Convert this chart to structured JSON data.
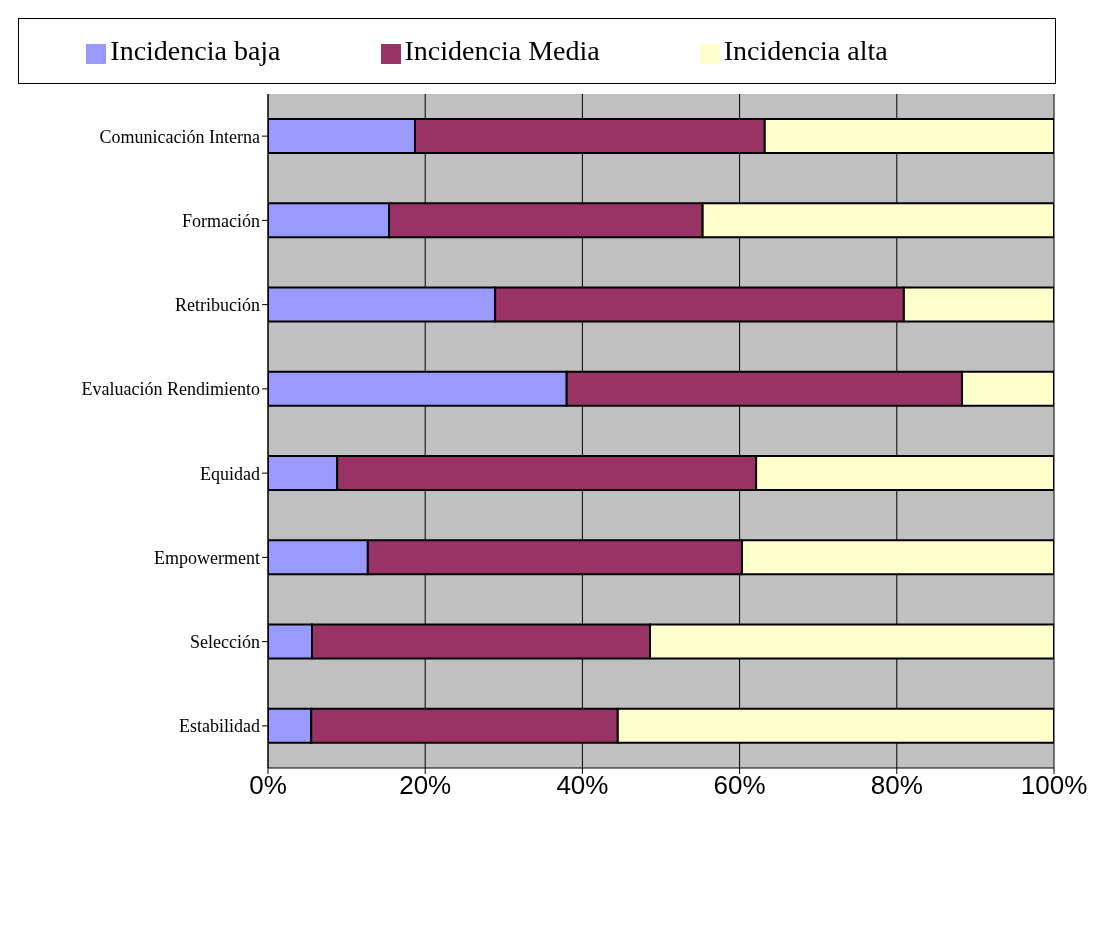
{
  "chart_data": {
    "type": "bar",
    "orientation": "horizontal",
    "stacked": true,
    "categories": [
      "Comunicación Interna",
      "Formación",
      "Retribución",
      "Evaluación Rendimiento",
      "Equidad",
      "Empowerment",
      "Selección",
      "Estabilidad"
    ],
    "series": [
      {
        "name": "Incidencia baja",
        "color": "#9999ff",
        "values": [
          18.7,
          15.4,
          28.9,
          38.0,
          8.8,
          12.7,
          5.6,
          5.5
        ]
      },
      {
        "name": "Incidencia Media",
        "color": "#993366",
        "values": [
          44.5,
          39.9,
          52.0,
          50.3,
          53.3,
          47.6,
          43.0,
          39.0
        ]
      },
      {
        "name": "Incidencia alta",
        "color": "#ffffcc",
        "values": [
          36.8,
          44.7,
          19.1,
          11.7,
          37.9,
          39.7,
          51.4,
          55.5
        ]
      }
    ],
    "xlim": [
      0,
      100
    ],
    "xticks": [
      {
        "value": 0,
        "label": "0%"
      },
      {
        "value": 20,
        "label": "20%"
      },
      {
        "value": 40,
        "label": "40%"
      },
      {
        "value": 60,
        "label": "60%"
      },
      {
        "value": 80,
        "label": "80%"
      },
      {
        "value": 100,
        "label": "100%"
      }
    ],
    "grid": "x",
    "legend": "top"
  }
}
